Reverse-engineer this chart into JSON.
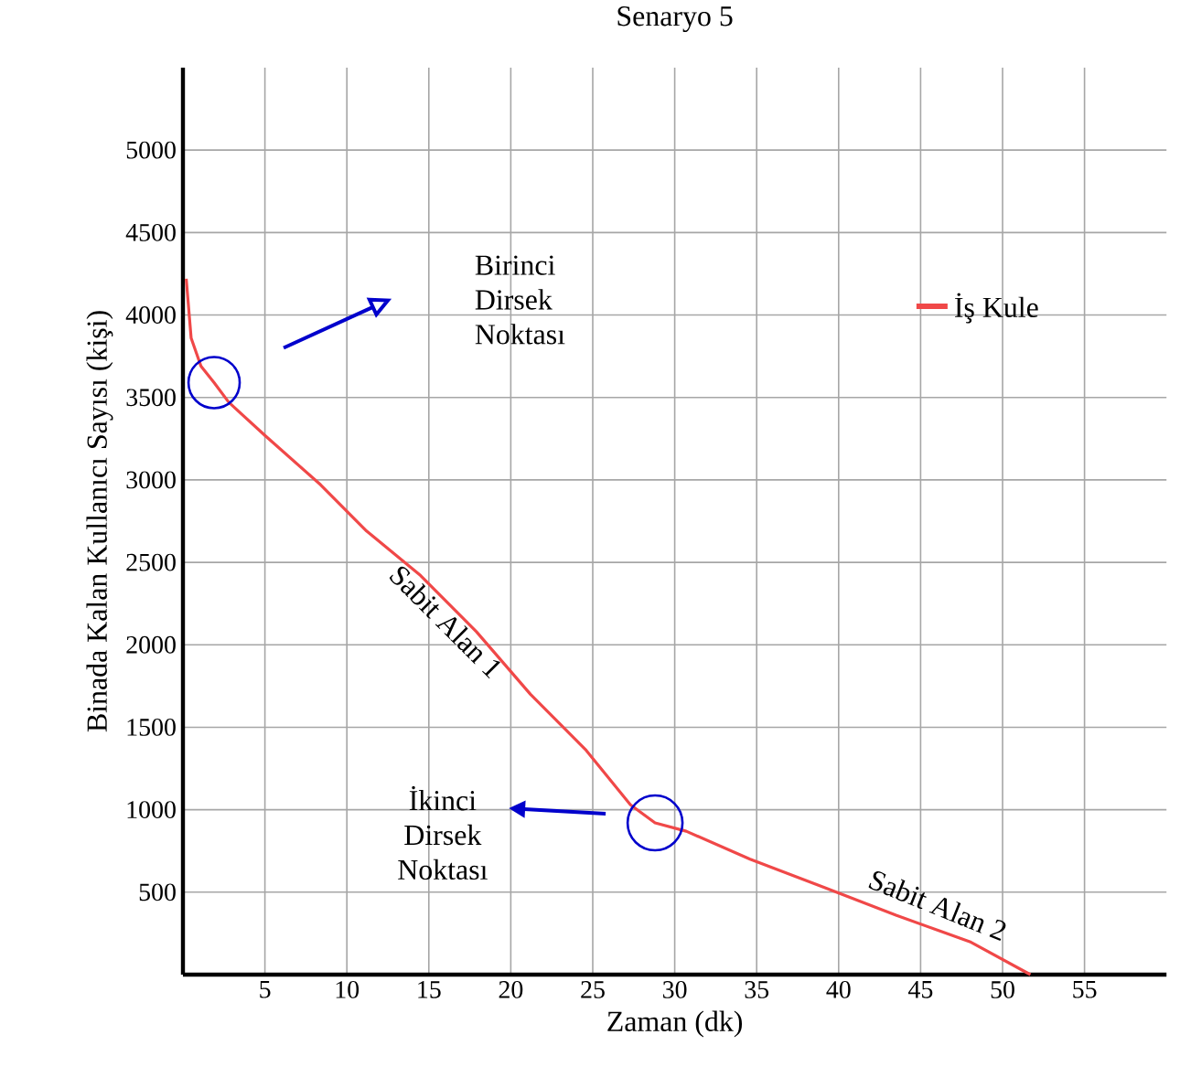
{
  "chart_data": {
    "type": "line",
    "title": "Senaryo 5",
    "xlabel": "Zaman (dk)",
    "ylabel": "Binada Kalan Kullanıcı Sayısı (kişi)",
    "xlim": [
      0,
      60
    ],
    "ylim": [
      0,
      5500
    ],
    "xticks": [
      5,
      10,
      15,
      20,
      25,
      30,
      35,
      40,
      45,
      50,
      55
    ],
    "yticks": [
      500,
      1000,
      1500,
      2000,
      2500,
      3000,
      3500,
      4000,
      4500,
      5000
    ],
    "grid": true,
    "legend": "top right",
    "marker": "none",
    "line_style": "solid",
    "series": [
      {
        "name": "İş Kule",
        "color": "#f04848",
        "x": [
          0.2,
          0.5,
          1.1,
          1.9,
          2.8,
          5,
          8.4,
          11.2,
          14.5,
          17.9,
          21.2,
          24.6,
          27.3,
          28.8,
          30.7,
          34.6,
          39.1,
          43.5,
          48,
          51.7
        ],
        "values": [
          4220,
          3860,
          3690,
          3590,
          3470,
          3270,
          2970,
          2690,
          2420,
          2080,
          1700,
          1360,
          1030,
          920,
          870,
          700,
          530,
          360,
          200,
          0
        ]
      }
    ],
    "annotations": [
      "Birinci Dirsek Noktası",
      "İkinci Dirsek Noktası",
      {
        "text": "Sabit Alan 1",
        "x": 16,
        "y": 2270
      },
      {
        "text": "Sabit Alan 2",
        "x": 45.5,
        "y": 320
      }
    ]
  }
}
